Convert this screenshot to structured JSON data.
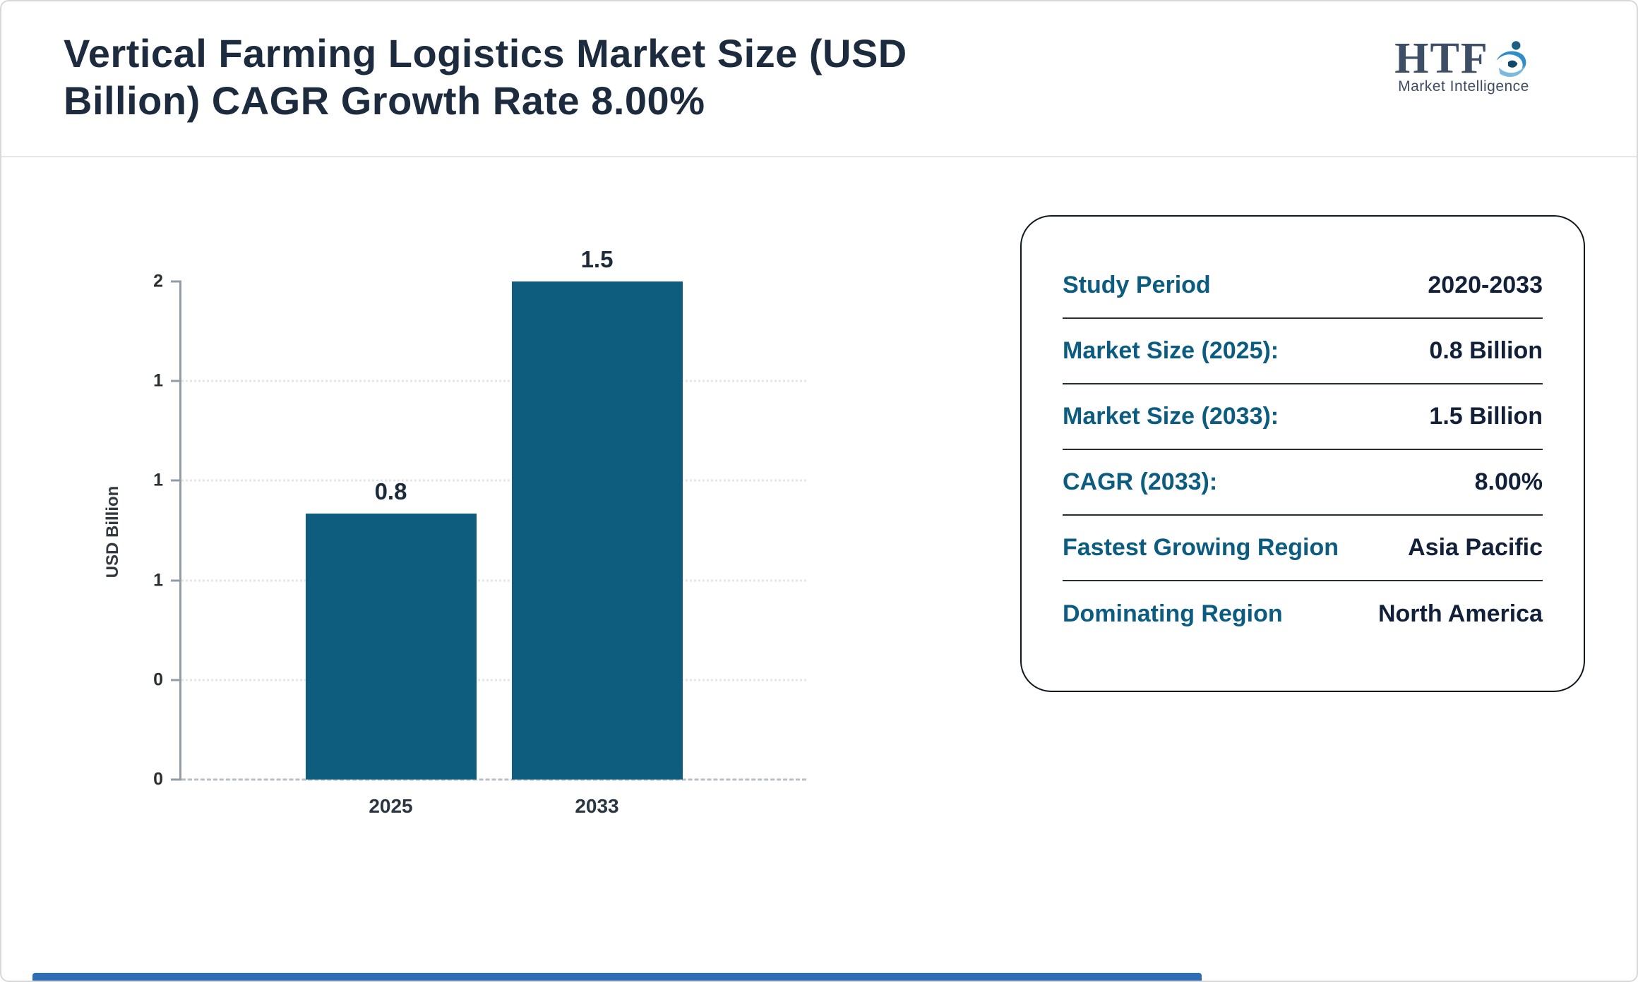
{
  "page": {
    "title": "Vertical Farming Logistics Market Size (USD Billion) CAGR Growth Rate 8.00%"
  },
  "logo": {
    "name": "HTF",
    "subtitle": "Market Intelligence"
  },
  "chart_data": {
    "type": "bar",
    "categories": [
      "2025",
      "2033"
    ],
    "values": [
      0.8,
      1.5
    ],
    "value_labels": [
      "0.8",
      "1.5"
    ],
    "ylabel": "USD Billion",
    "ytick_labels": [
      "2",
      "1",
      "1",
      "1",
      "0",
      "0"
    ],
    "ylim": [
      0,
      2
    ],
    "grid": true,
    "legend_position": "none",
    "bar_color": "#0e5d7e"
  },
  "info_card": {
    "label_color": "#0b5c80",
    "value_color": "#13203a",
    "rows": [
      {
        "label": "Study Period",
        "value": "2020-2033"
      },
      {
        "label": "Market Size (2025):",
        "value": "0.8 Billion"
      },
      {
        "label": "Market Size (2033):",
        "value": "1.5 Billion"
      },
      {
        "label": "CAGR (2033):",
        "value": "8.00%"
      },
      {
        "label": "Fastest Growing Region",
        "value": "Asia Pacific"
      },
      {
        "label": "Dominating Region",
        "value": "North America"
      }
    ]
  },
  "footer": {
    "accent_color": "#2e6cb5"
  }
}
